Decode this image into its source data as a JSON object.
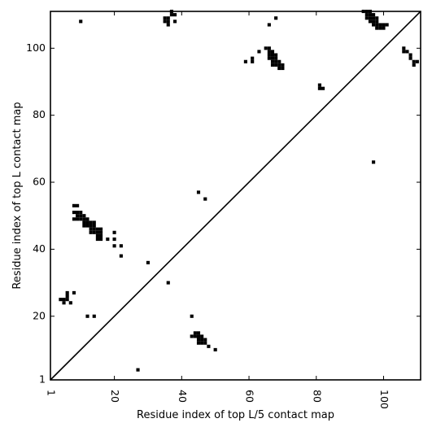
{
  "chart_data": {
    "type": "scatter",
    "title": "",
    "xlabel": "Residue index of top L/5 contact map",
    "ylabel": "Residue index of top L contact map",
    "xlim": [
      1,
      111
    ],
    "ylim": [
      1,
      111
    ],
    "xticks": [
      1,
      20,
      40,
      60,
      80,
      100
    ],
    "yticks": [
      1,
      20,
      40,
      60,
      80,
      100
    ],
    "xtick_labels": [
      "1",
      "20",
      "40",
      "60",
      "80",
      "100"
    ],
    "ytick_labels": [
      "1",
      "20",
      "40",
      "60",
      "80",
      "100"
    ],
    "xtick_rotation": -90,
    "grid": false,
    "legend": "none",
    "marker": "square",
    "color": "#000000",
    "diagonal": {
      "from": [
        1,
        1
      ],
      "to": [
        111,
        111
      ]
    },
    "series": [
      {
        "points": [
          [
            10,
            108
          ],
          [
            27,
            4
          ],
          [
            36,
            109
          ],
          [
            36,
            108
          ],
          [
            35,
            108
          ],
          [
            35,
            109
          ],
          [
            36,
            107
          ],
          [
            37,
            111
          ],
          [
            37,
            110
          ],
          [
            38,
            110
          ],
          [
            38,
            108
          ],
          [
            59,
            96
          ],
          [
            61,
            97
          ],
          [
            61,
            96
          ],
          [
            63,
            99
          ],
          [
            65,
            100
          ],
          [
            66,
            100
          ],
          [
            66,
            99
          ],
          [
            67,
            99
          ],
          [
            66,
            107
          ],
          [
            68,
            109
          ],
          [
            66,
            98
          ],
          [
            67,
            98
          ],
          [
            68,
            98
          ],
          [
            66,
            97
          ],
          [
            67,
            97
          ],
          [
            68,
            97
          ],
          [
            67,
            96
          ],
          [
            68,
            96
          ],
          [
            69,
            96
          ],
          [
            67,
            95
          ],
          [
            68,
            95
          ],
          [
            69,
            95
          ],
          [
            70,
            95
          ],
          [
            69,
            94
          ],
          [
            70,
            94
          ],
          [
            81,
            89
          ],
          [
            81,
            88
          ],
          [
            82,
            88
          ],
          [
            94,
            111
          ],
          [
            95,
            111
          ],
          [
            96,
            111
          ],
          [
            95,
            110
          ],
          [
            96,
            110
          ],
          [
            97,
            110
          ],
          [
            95,
            109
          ],
          [
            96,
            109
          ],
          [
            97,
            109
          ],
          [
            98,
            109
          ],
          [
            96,
            108
          ],
          [
            97,
            108
          ],
          [
            98,
            108
          ],
          [
            97,
            107
          ],
          [
            98,
            107
          ],
          [
            99,
            107
          ],
          [
            100,
            107
          ],
          [
            101,
            107
          ],
          [
            98,
            106
          ],
          [
            99,
            106
          ],
          [
            100,
            106
          ],
          [
            97,
            66
          ],
          [
            106,
            100
          ],
          [
            106,
            99
          ],
          [
            107,
            99
          ],
          [
            108,
            98
          ],
          [
            108,
            97
          ],
          [
            109,
            96
          ],
          [
            110,
            96
          ],
          [
            109,
            95
          ],
          [
            4,
            25
          ],
          [
            5,
            25
          ],
          [
            6,
            25
          ],
          [
            6,
            26
          ],
          [
            6,
            27
          ],
          [
            5,
            24
          ],
          [
            7,
            24
          ],
          [
            8,
            27
          ],
          [
            8,
            53
          ],
          [
            9,
            53
          ],
          [
            8,
            51
          ],
          [
            9,
            51
          ],
          [
            10,
            51
          ],
          [
            9,
            50
          ],
          [
            10,
            50
          ],
          [
            11,
            50
          ],
          [
            8,
            49
          ],
          [
            9,
            49
          ],
          [
            10,
            49
          ],
          [
            11,
            49
          ],
          [
            12,
            49
          ],
          [
            11,
            48
          ],
          [
            12,
            48
          ],
          [
            13,
            48
          ],
          [
            14,
            48
          ],
          [
            11,
            47
          ],
          [
            12,
            47
          ],
          [
            13,
            47
          ],
          [
            14,
            47
          ],
          [
            13,
            46
          ],
          [
            14,
            46
          ],
          [
            15,
            46
          ],
          [
            16,
            46
          ],
          [
            13,
            45
          ],
          [
            14,
            45
          ],
          [
            15,
            45
          ],
          [
            16,
            45
          ],
          [
            15,
            44
          ],
          [
            16,
            44
          ],
          [
            15,
            43
          ],
          [
            16,
            43
          ],
          [
            18,
            43
          ],
          [
            20,
            43
          ],
          [
            20,
            45
          ],
          [
            20,
            41
          ],
          [
            22,
            41
          ],
          [
            22,
            38
          ],
          [
            30,
            36
          ],
          [
            36,
            30
          ],
          [
            12,
            20
          ],
          [
            14,
            20
          ],
          [
            43,
            20
          ],
          [
            44,
            15
          ],
          [
            45,
            15
          ],
          [
            43,
            14
          ],
          [
            44,
            14
          ],
          [
            45,
            14
          ],
          [
            46,
            14
          ],
          [
            45,
            13
          ],
          [
            46,
            13
          ],
          [
            47,
            13
          ],
          [
            45,
            12
          ],
          [
            46,
            12
          ],
          [
            47,
            12
          ],
          [
            48,
            11
          ],
          [
            50,
            10
          ],
          [
            45,
            57
          ],
          [
            47,
            55
          ]
        ]
      }
    ]
  }
}
